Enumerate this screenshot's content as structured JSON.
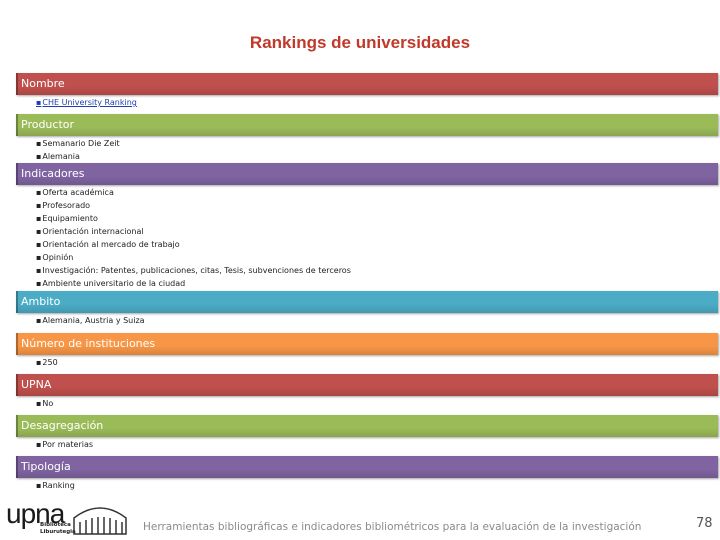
{
  "header": {
    "title": "Rankings de universidades"
  },
  "sections": [
    {
      "heading": "Nombre",
      "items": [
        "CHE University Ranking"
      ]
    },
    {
      "heading": "Productor",
      "items": [
        "Semanario Die Zeit",
        "Alemania"
      ]
    },
    {
      "heading": "Indicadores",
      "items": [
        "Oferta académica",
        "Profesorado",
        "Equipamiento",
        "Orientación internacional",
        "Orientación al mercado de trabajo",
        "Opinión",
        "Investigación: Patentes, publicaciones, citas, Tesis, subvenciones de terceros",
        "Ambiente universitario de la ciudad"
      ]
    },
    {
      "heading": "Ambito",
      "items": [
        "Alemania, Austria y Suiza"
      ]
    },
    {
      "heading": "Número de instituciones",
      "items": [
        "250"
      ]
    },
    {
      "heading": "UPNA",
      "items": [
        "No"
      ]
    },
    {
      "heading": "Desagregación",
      "items": [
        "Por materias"
      ]
    },
    {
      "heading": "Tipología",
      "items": [
        "Ranking"
      ]
    }
  ],
  "footer": {
    "logo": "upna",
    "logo_sub_1": "Biblioteca",
    "logo_sub_2": "Liburutegia",
    "text": "Herramientas bibliográficas e indicadores bibliométricos para la evaluación de la investigación",
    "page_number": "78"
  }
}
